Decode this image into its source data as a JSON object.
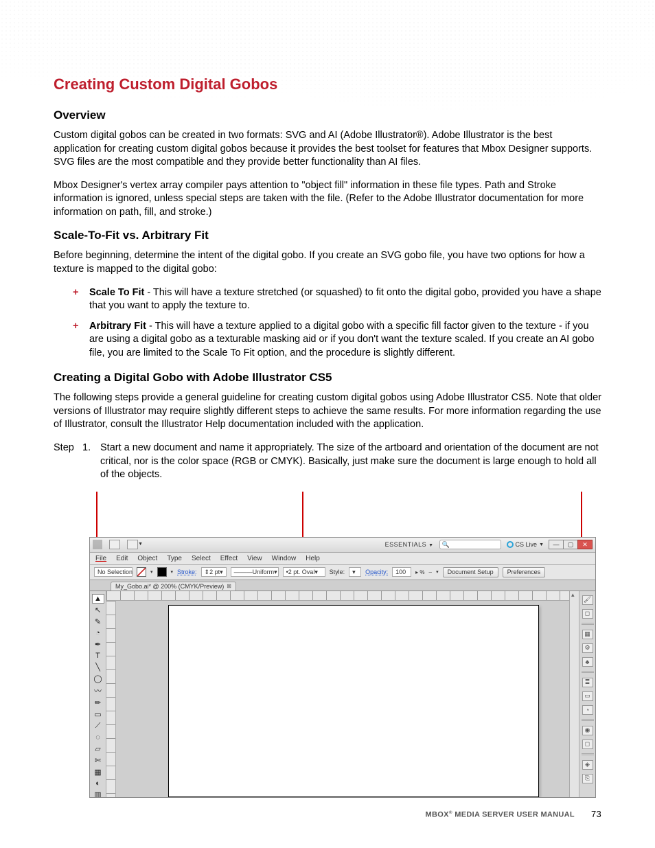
{
  "colors": {
    "accent_red": "#be1e2d",
    "bullet_red": "#be1e2d",
    "link_blue": "#2255cc",
    "callout_red": "#c00000",
    "win_close_bg": "#d9534f"
  },
  "typography": {
    "body_pt": 11,
    "title_pt": 17,
    "h2_pt": 13,
    "footer_pt": 8
  },
  "title": "Creating Custom Digital Gobos",
  "sections": {
    "overview": {
      "heading": "Overview",
      "p1": "Custom digital gobos can be created in two formats: SVG and AI (Adobe Illustrator®). Adobe Illustrator is the best application for creating custom digital gobos because it provides the best toolset for features that Mbox Designer supports. SVG files are the most compatible and they provide better functionality than AI files.",
      "p2": "Mbox Designer's vertex array compiler pays attention to \"object fill\" information in these file types. Path and Stroke information is ignored, unless special steps are taken with the file. (Refer to the Adobe Illustrator documentation for more information on path, fill, and stroke.)"
    },
    "scale": {
      "heading": "Scale-To-Fit vs. Arbitrary Fit",
      "intro": "Before beginning, determine the intent of the digital gobo. If you create an SVG gobo file, you have two options for how a texture is mapped to the digital gobo:",
      "bullets": [
        {
          "term": "Scale To Fit",
          "text": " - This will have a texture stretched (or squashed) to fit onto the digital gobo, provided you have a shape that you want to apply the texture to."
        },
        {
          "term": "Arbitrary Fit",
          "text": " - This will have a texture applied to a digital gobo with a specific fill factor given to the texture - if you are using a digital gobo as a texturable masking aid or if you don't want the texture scaled. If you create an AI gobo file, you are limited to the Scale To Fit option, and the procedure is slightly different."
        }
      ]
    },
    "creating": {
      "heading": "Creating a Digital Gobo with Adobe Illustrator CS5",
      "intro": "The following steps provide a general guideline for creating custom digital gobos using Adobe Illustrator CS5. Note that older versions of Illustrator may require slightly different steps to achieve the same results. For more information regarding the use of Illustrator, consult the Illustrator Help documentation included with the application.",
      "step_label": "Step",
      "step_num": "1.",
      "step_text": "Start a new document and name it appropriately.   The size of the artboard and orientation of the document are not critical, nor is the color space (RGB or CMYK). Basically, just make sure the document is large enough to hold all of the objects."
    }
  },
  "screenshot": {
    "titlebar": {
      "essentials": "ESSENTIALS",
      "cslive": "CS Live",
      "win_min": "—",
      "win_max": "▢",
      "win_close": "✕"
    },
    "menubar": [
      "File",
      "Edit",
      "Object",
      "Type",
      "Select",
      "Effect",
      "View",
      "Window",
      "Help"
    ],
    "controlbar": {
      "no_selection": "No Selection",
      "stroke_label": "Stroke:",
      "stroke_val": "2 pt",
      "uniform": "Uniform",
      "brush": "2 pt. Oval",
      "style_label": "Style:",
      "opacity_label": "Opacity:",
      "opacity_val": "100",
      "opacity_unit": "%",
      "doc_setup": "Document Setup",
      "prefs": "Preferences"
    },
    "tab": "My_Gobo.ai* @ 200% (CMYK/Preview)",
    "tools_left": [
      "▲",
      "↖",
      "✎",
      "◔",
      "✒",
      "T",
      "╲",
      "◯",
      "〰",
      "✏",
      "▭",
      "⟋",
      "◌",
      "▱",
      "✄",
      "▦",
      "◐",
      "▥",
      "⬚",
      "◻"
    ],
    "dock_right": [
      "🖌",
      "◻",
      "",
      "▦",
      "⚙",
      "♣",
      "",
      "≣",
      "▭",
      "◔",
      "",
      "◉",
      "◻",
      "",
      "◈",
      "⎘"
    ]
  },
  "footer": {
    "manual_prefix": "MBOX",
    "manual_suffix": " MEDIA SERVER USER MANUAL",
    "page": "73"
  }
}
